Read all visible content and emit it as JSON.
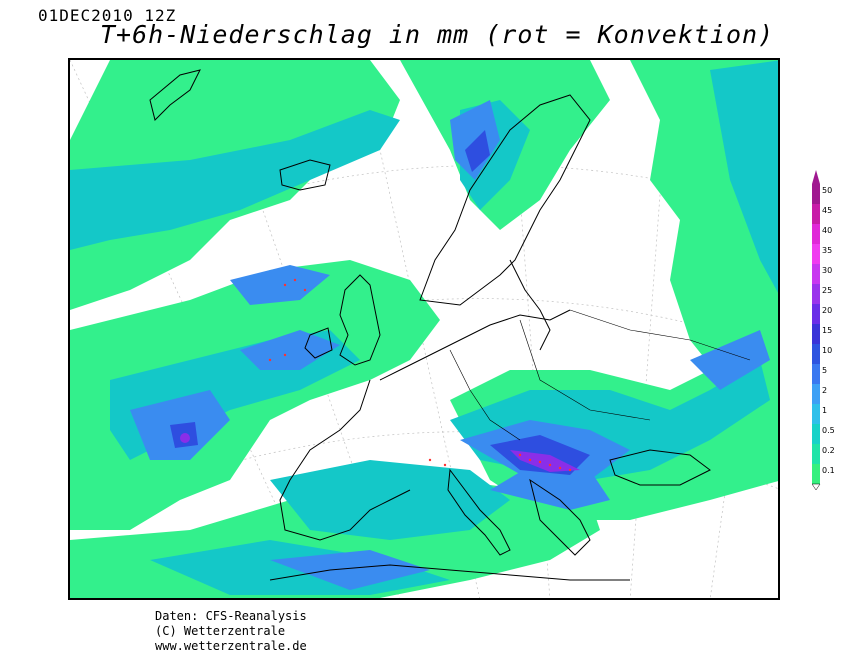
{
  "header": {
    "date": "01DEC2010 12Z",
    "title": "T+6h-Niederschlag in mm (rot = Konvektion)"
  },
  "map": {
    "region": "Europe / North Atlantic",
    "palette": {
      "0.1": "#33f08c",
      "0.2": "#22d6a0",
      "0.5": "#14c8c8",
      "1": "#2ab4e8",
      "2": "#3b96f5",
      "5": "#3a74f0",
      "10": "#2e54e0",
      "15": "#3a3ad6",
      "20": "#5a2ee0",
      "25": "#8a2ee8",
      "30": "#b02ef0",
      "35": "#d62ef0",
      "40": "#f02ef0",
      "45": "#d018c8",
      "50": "#a01890"
    },
    "convection_color": "#ff3030",
    "coast_color": "#000000"
  },
  "legend": {
    "labels": [
      "50",
      "45",
      "40",
      "35",
      "30",
      "25",
      "20",
      "15",
      "10",
      "5",
      "2",
      "1",
      "0.5",
      "0.2",
      "0.1"
    ],
    "colors": [
      "#a01890",
      "#c81ca8",
      "#e028d8",
      "#f03cf0",
      "#c838f0",
      "#9a34ec",
      "#6a2ee8",
      "#3a34d8",
      "#2e54e0",
      "#3a78f0",
      "#3ea0f5",
      "#30c0ea",
      "#18d2c8",
      "#20e4a8",
      "#36f07e"
    ]
  },
  "footer": {
    "line1": "Daten: CFS-Reanalysis",
    "line2": "(C) Wetterzentrale",
    "line3": "www.wetterzentrale.de"
  }
}
